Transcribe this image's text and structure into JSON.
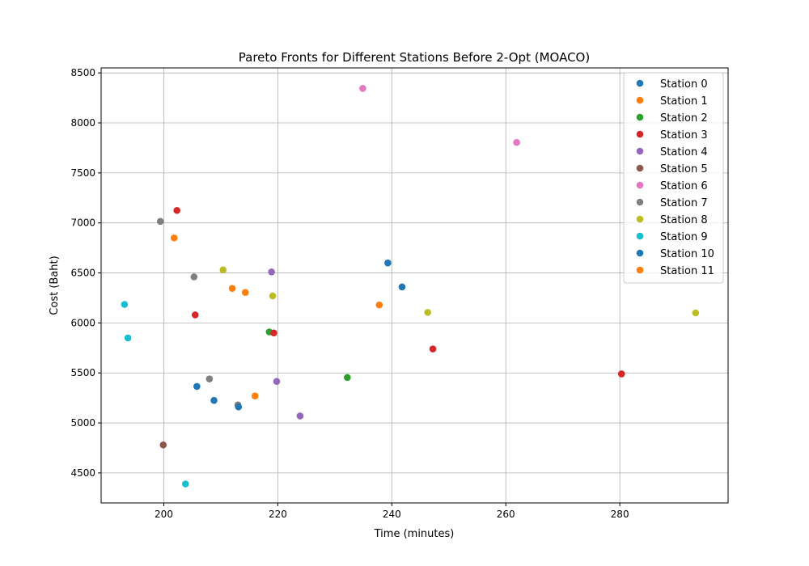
{
  "chart_data": {
    "type": "scatter",
    "title": "Pareto Fronts for Different Stations Before 2-Opt (MOACO)",
    "xlabel": "Time (minutes)",
    "ylabel": "Cost (Baht)",
    "xlim": [
      189,
      299
    ],
    "ylim": [
      4200,
      8550
    ],
    "xticks": [
      200,
      220,
      240,
      260,
      280
    ],
    "yticks": [
      4500,
      5000,
      5500,
      6000,
      6500,
      7000,
      7500,
      8000,
      8500
    ],
    "grid": true,
    "legend_position": "top-right",
    "series": [
      {
        "name": "Station 0",
        "color": "#1f77b4",
        "points": [
          [
            239.3,
            6600
          ],
          [
            241.8,
            6360
          ]
        ]
      },
      {
        "name": "Station 1",
        "color": "#ff7f0e",
        "points": [
          [
            201.8,
            6850
          ],
          [
            212.0,
            6345
          ],
          [
            214.3,
            6305
          ],
          [
            237.8,
            6180
          ]
        ]
      },
      {
        "name": "Station 2",
        "color": "#2ca02c",
        "points": [
          [
            218.5,
            5910
          ],
          [
            232.2,
            5455
          ]
        ]
      },
      {
        "name": "Station 3",
        "color": "#d62728",
        "points": [
          [
            202.3,
            7125
          ],
          [
            205.5,
            6080
          ],
          [
            219.3,
            5900
          ],
          [
            247.2,
            5740
          ],
          [
            280.3,
            5490
          ]
        ]
      },
      {
        "name": "Station 4",
        "color": "#9467bd",
        "points": [
          [
            218.9,
            6510
          ],
          [
            219.8,
            5415
          ],
          [
            223.9,
            5070
          ]
        ]
      },
      {
        "name": "Station 5",
        "color": "#8c564b",
        "points": [
          [
            199.9,
            4780
          ]
        ]
      },
      {
        "name": "Station 6",
        "color": "#e377c2",
        "points": [
          [
            234.9,
            8345
          ],
          [
            261.9,
            7805
          ]
        ]
      },
      {
        "name": "Station 7",
        "color": "#7f7f7f",
        "points": [
          [
            199.4,
            7015
          ],
          [
            205.3,
            6460
          ],
          [
            208.0,
            5440
          ],
          [
            213.0,
            5180
          ]
        ]
      },
      {
        "name": "Station 8",
        "color": "#bcbd22",
        "points": [
          [
            210.4,
            6530
          ],
          [
            219.1,
            6270
          ],
          [
            246.3,
            6105
          ],
          [
            293.3,
            6100
          ]
        ]
      },
      {
        "name": "Station 9",
        "color": "#17becf",
        "points": [
          [
            193.1,
            6185
          ],
          [
            193.7,
            5850
          ],
          [
            203.8,
            4390
          ]
        ]
      },
      {
        "name": "Station 10",
        "color": "#1f77b4",
        "points": [
          [
            205.8,
            5365
          ],
          [
            208.8,
            5225
          ],
          [
            213.1,
            5160
          ]
        ]
      },
      {
        "name": "Station 11",
        "color": "#ff7f0e",
        "points": [
          [
            216.0,
            5270
          ]
        ]
      }
    ]
  }
}
